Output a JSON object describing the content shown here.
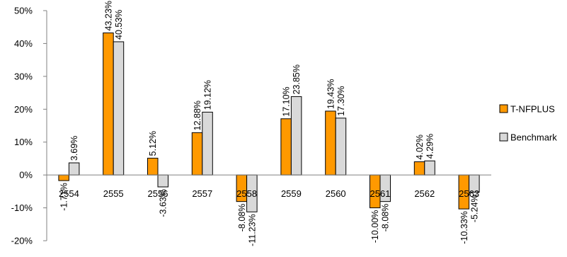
{
  "chart_data": {
    "type": "bar",
    "categories": [
      "2554",
      "2555",
      "2556",
      "2557",
      "2558",
      "2559",
      "2560",
      "2561",
      "2562",
      "2563"
    ],
    "series": [
      {
        "name": "T-NFPLUS",
        "color": "#FF9900",
        "values": [
          -1.71,
          43.23,
          5.12,
          12.88,
          -8.08,
          17.1,
          19.43,
          -10.0,
          4.02,
          -10.33
        ],
        "labels": [
          "-1.71%",
          "43.23%",
          "5.12%",
          "12.88%",
          "-8.08%",
          "17.10%",
          "19.43%",
          "-10.00%",
          "4.02%",
          "-10.33%"
        ]
      },
      {
        "name": "Benchmark",
        "color": "#D9D9D9",
        "values": [
          3.69,
          40.53,
          -3.63,
          19.12,
          -11.23,
          23.85,
          17.3,
          -8.08,
          4.29,
          -5.24
        ],
        "labels": [
          "3.69%",
          "40.53%",
          "-3.63%",
          "19.12%",
          "-11.23%",
          "23.85%",
          "17.30%",
          "-8.08%",
          "4.29%",
          "-5.24%"
        ]
      }
    ],
    "yticks": [
      -20,
      -10,
      0,
      10,
      20,
      30,
      40,
      50
    ],
    "ytick_labels": [
      "-20%",
      "-10%",
      "0%",
      "10%",
      "20%",
      "30%",
      "40%",
      "50%"
    ],
    "ylim": [
      -20,
      50
    ],
    "legend_position": "right",
    "grid": false
  }
}
